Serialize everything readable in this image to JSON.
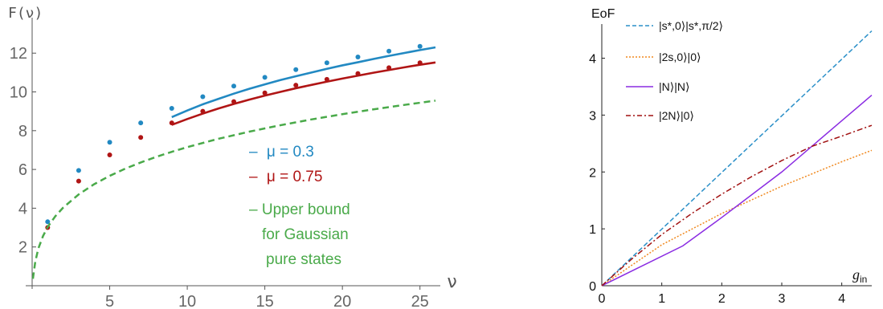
{
  "chart_data": [
    {
      "type": "line",
      "title": "",
      "ylabel": "F(ν)",
      "xlabel": "ν",
      "xlim": [
        0,
        26
      ],
      "ylim": [
        0,
        13.5
      ],
      "x_ticks": [
        5,
        10,
        15,
        20,
        25
      ],
      "y_ticks": [
        2,
        4,
        6,
        8,
        10,
        12
      ],
      "grid": false,
      "legend_position": "center",
      "series": [
        {
          "name": "μ = 0.3",
          "label_prefix": "–",
          "color": "#2289c2",
          "line_x": [
            9,
            10,
            11,
            12,
            13,
            14,
            15,
            16,
            17,
            18,
            19,
            20,
            21,
            22,
            23,
            24,
            25,
            26
          ],
          "line_y": [
            8.7,
            9.04,
            9.36,
            9.64,
            9.91,
            10.16,
            10.39,
            10.61,
            10.81,
            11.0,
            11.19,
            11.37,
            11.53,
            11.7,
            11.86,
            12.01,
            12.16,
            12.3
          ],
          "points_x": [
            1,
            3,
            5,
            7,
            9,
            11,
            13,
            15,
            17,
            19,
            21,
            23,
            25
          ],
          "points_y": [
            3.3,
            5.95,
            7.4,
            8.4,
            9.15,
            9.75,
            10.3,
            10.75,
            11.15,
            11.5,
            11.8,
            12.1,
            12.35
          ]
        },
        {
          "name": "μ = 0.75",
          "label_prefix": "–",
          "color": "#b01515",
          "line_x": [
            9,
            10,
            11,
            12,
            13,
            14,
            15,
            16,
            17,
            18,
            19,
            20,
            21,
            22,
            23,
            24,
            25,
            26
          ],
          "line_y": [
            8.3,
            8.6,
            8.88,
            9.14,
            9.38,
            9.6,
            9.81,
            10.0,
            10.19,
            10.36,
            10.53,
            10.69,
            10.84,
            10.99,
            11.13,
            11.27,
            11.4,
            11.52
          ],
          "points_x": [
            1,
            3,
            5,
            7,
            9,
            11,
            13,
            15,
            17,
            19,
            21,
            23,
            25
          ],
          "points_y": [
            3.0,
            5.4,
            6.75,
            7.65,
            8.4,
            9.0,
            9.5,
            9.95,
            10.35,
            10.65,
            10.95,
            11.25,
            11.5
          ]
        },
        {
          "name": "Upper bound for Gaussian pure states",
          "name_lines": [
            "– Upper bound",
            "for Gaussian",
            "pure states"
          ],
          "color": "#4aaa4a",
          "dashed": true,
          "line_x": [
            0.05,
            0.2,
            0.4,
            0.7,
            1,
            1.5,
            2,
            3,
            4,
            5,
            6,
            7,
            8,
            9,
            10,
            12,
            14,
            16,
            18,
            20,
            22,
            24,
            26
          ],
          "line_y": [
            0.36,
            1.23,
            1.92,
            2.56,
            3.03,
            3.59,
            4.03,
            4.71,
            5.24,
            5.67,
            6.04,
            6.36,
            6.65,
            6.91,
            7.15,
            7.58,
            7.95,
            8.28,
            8.58,
            8.85,
            9.1,
            9.33,
            9.55
          ]
        }
      ]
    },
    {
      "type": "line",
      "title": "",
      "ylabel": "EoF",
      "xlabel": "g",
      "xlabel_sub": "in",
      "xlim": [
        0,
        4.5
      ],
      "ylim": [
        0,
        4.6
      ],
      "x_ticks": [
        0,
        1,
        2,
        3,
        4
      ],
      "y_ticks": [
        0,
        1,
        2,
        3,
        4
      ],
      "grid": false,
      "legend_position": "top-left",
      "series": [
        {
          "name": "|s*,0⟩|s*,π/2⟩",
          "color": "#2a8fc8",
          "style": "dashed",
          "x": [
            0,
            4.5
          ],
          "y": [
            0,
            4.48
          ]
        },
        {
          "name": "|2s,0⟩|0⟩",
          "color": "#f0891f",
          "style": "dotted",
          "x": [
            0,
            1,
            2,
            3,
            4,
            4.5
          ],
          "y": [
            0,
            0.72,
            1.27,
            1.75,
            2.18,
            2.38
          ]
        },
        {
          "name": "|N⟩|N⟩",
          "color": "#8a2be2",
          "style": "solid",
          "x": [
            0,
            1.35,
            2.0,
            3.0,
            4.0,
            4.5
          ],
          "y": [
            0,
            0.7,
            1.2,
            2.0,
            2.9,
            3.35
          ]
        },
        {
          "name": "|2N⟩|0⟩",
          "color": "#a11010",
          "style": "dashdot",
          "x": [
            0,
            0.5,
            1,
            1.5,
            2,
            2.5,
            3,
            3.5,
            4,
            4.5
          ],
          "y": [
            0,
            0.47,
            0.9,
            1.27,
            1.61,
            1.92,
            2.2,
            2.45,
            2.63,
            2.82
          ]
        }
      ]
    }
  ]
}
